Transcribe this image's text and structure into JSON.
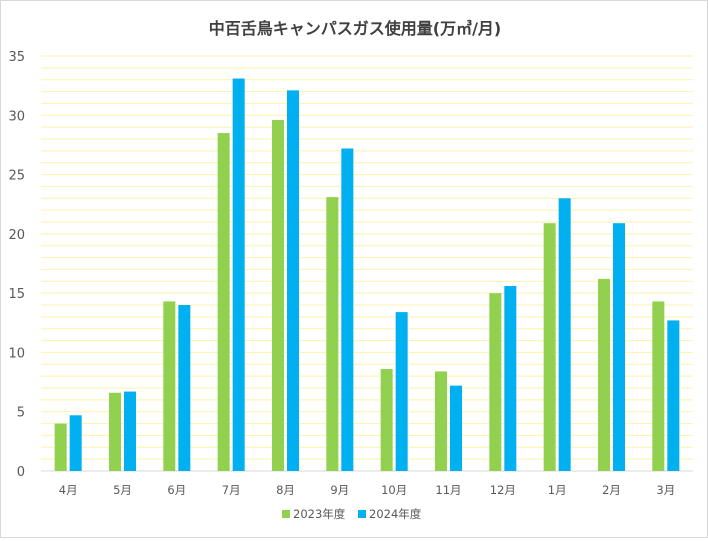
{
  "chart_data": {
    "type": "bar",
    "title": "中百舌鳥キャンパスガス使用量(万㎥/月)",
    "categories": [
      "4月",
      "5月",
      "6月",
      "7月",
      "8月",
      "9月",
      "10月",
      "11月",
      "12月",
      "1月",
      "2月",
      "3月"
    ],
    "series": [
      {
        "name": "2023年度",
        "color": "#92D050",
        "values": [
          4.0,
          6.6,
          14.3,
          28.5,
          29.6,
          23.1,
          8.6,
          8.4,
          15.0,
          20.9,
          16.2,
          14.3
        ]
      },
      {
        "name": "2024年度",
        "color": "#00B0F0",
        "values": [
          4.7,
          6.7,
          14.0,
          33.1,
          32.1,
          27.2,
          13.4,
          7.2,
          15.6,
          23.0,
          20.9,
          12.7
        ]
      }
    ],
    "ylim": [
      0,
      35
    ],
    "yticks": [
      0,
      5,
      10,
      15,
      20,
      25,
      30,
      35
    ],
    "xlabel": "",
    "ylabel": "",
    "grid": true,
    "gridlines_per_major": 4,
    "grid_color": "#FFF2A8",
    "legend_position": "bottom"
  }
}
